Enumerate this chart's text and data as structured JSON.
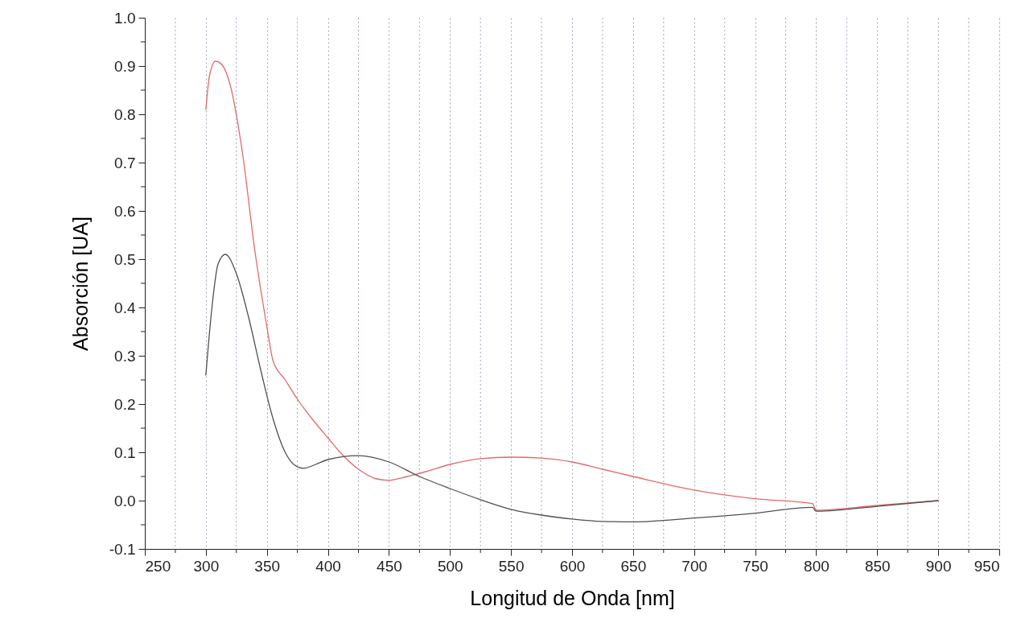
{
  "chart_data": {
    "type": "line",
    "xlabel": "Longitud de Onda [nm]",
    "ylabel": "Absorción [UA]",
    "xlim": [
      250,
      950
    ],
    "ylim": [
      -0.1,
      1.0
    ],
    "xticks": [
      250,
      {
        "value": 275,
        "label": null
      },
      300,
      {
        "value": 325,
        "label": null
      },
      350,
      {
        "value": 375,
        "label": null
      },
      400,
      {
        "value": 425,
        "label": null
      },
      450,
      {
        "value": 475,
        "label": null
      },
      500,
      {
        "value": 525,
        "label": null
      },
      550,
      {
        "value": 575,
        "label": null
      },
      600,
      {
        "value": 625,
        "label": null
      },
      650,
      {
        "value": 675,
        "label": null
      },
      700,
      {
        "value": 725,
        "label": null
      },
      750,
      {
        "value": 775,
        "label": null
      },
      800,
      {
        "value": 825,
        "label": null
      },
      850,
      {
        "value": 875,
        "label": null
      },
      900,
      {
        "value": 925,
        "label": null
      },
      950
    ],
    "yticks": [
      {
        "value": -0.1,
        "label": "-0.1"
      },
      {
        "value": -0.05,
        "label": null
      },
      {
        "value": 0,
        "label": "0.0"
      },
      {
        "value": 0.05,
        "label": null
      },
      {
        "value": 0.1,
        "label": "0.1"
      },
      {
        "value": 0.15,
        "label": null
      },
      {
        "value": 0.2,
        "label": "0.2"
      },
      {
        "value": 0.25,
        "label": null
      },
      {
        "value": 0.3,
        "label": "0.3"
      },
      {
        "value": 0.35,
        "label": null
      },
      {
        "value": 0.4,
        "label": "0.4"
      },
      {
        "value": 0.45,
        "label": null
      },
      {
        "value": 0.5,
        "label": "0.5"
      },
      {
        "value": 0.55,
        "label": null
      },
      {
        "value": 0.6,
        "label": "0.6"
      },
      {
        "value": 0.65,
        "label": null
      },
      {
        "value": 0.7,
        "label": "0.7"
      },
      {
        "value": 0.75,
        "label": null
      },
      {
        "value": 0.8,
        "label": "0.8"
      },
      {
        "value": 0.85,
        "label": null
      },
      {
        "value": 0.9,
        "label": "0.9"
      },
      {
        "value": 0.95,
        "label": null
      },
      {
        "value": 1.0,
        "label": "1.0"
      }
    ],
    "grid": "x",
    "marker": "none",
    "line_style": "solid",
    "series": [
      {
        "color": "#e06a6a",
        "x": [
          300,
          303,
          308,
          314,
          320,
          330,
          340,
          350,
          355,
          365,
          375,
          390,
          400,
          410,
          425,
          440,
          450,
          465,
          480,
          500,
          525,
          550,
          575,
          600,
          625,
          650,
          700,
          750,
          797,
          800,
          850,
          900
        ],
        "values": [
          0.81,
          0.88,
          0.91,
          0.9,
          0.86,
          0.72,
          0.52,
          0.36,
          0.29,
          0.25,
          0.21,
          0.16,
          0.13,
          0.1,
          0.065,
          0.045,
          0.042,
          0.05,
          0.06,
          0.075,
          0.087,
          0.09,
          0.088,
          0.08,
          0.065,
          0.05,
          0.022,
          0.004,
          -0.006,
          -0.02,
          -0.01,
          0.0
        ]
      },
      {
        "color": "#505050",
        "x": [
          300,
          305,
          310,
          316,
          325,
          335,
          345,
          355,
          365,
          372,
          380,
          390,
          400,
          425,
          450,
          475,
          500,
          525,
          550,
          575,
          600,
          625,
          650,
          700,
          750,
          797,
          800,
          850,
          900
        ],
        "values": [
          0.26,
          0.4,
          0.49,
          0.51,
          0.47,
          0.38,
          0.27,
          0.17,
          0.1,
          0.075,
          0.067,
          0.075,
          0.085,
          0.093,
          0.08,
          0.05,
          0.025,
          0.002,
          -0.018,
          -0.03,
          -0.038,
          -0.043,
          -0.044,
          -0.036,
          -0.026,
          -0.014,
          -0.022,
          -0.012,
          0.0
        ]
      }
    ]
  }
}
